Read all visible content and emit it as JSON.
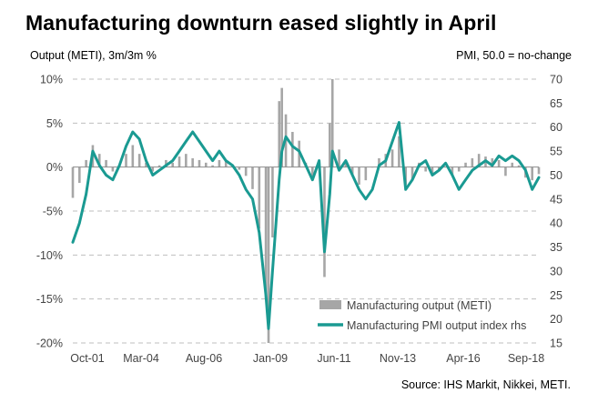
{
  "title": "Manufacturing downturn eased slightly in April",
  "left_axis_label": "Output  (METI), 3m/3m %",
  "right_axis_label": "PMI, 50.0 = no-change",
  "source": "Source: IHS Markit, Nikkei, METI.",
  "colors": {
    "bars": "#a6a6a6",
    "line": "#1a9a92",
    "grid": "#bfbfbf",
    "axis": "#444444"
  },
  "chart_data": {
    "type": "bar+line",
    "x_tick_labels": [
      "Oct-01",
      "Mar-04",
      "Aug-06",
      "Jan-09",
      "Jun-11",
      "Nov-13",
      "Apr-16",
      "Sep-18"
    ],
    "y_left": {
      "ticks": [
        "10%",
        "5%",
        "0%",
        "-5%",
        "-10%",
        "-15%",
        "-20%"
      ],
      "min": -20,
      "max": 10
    },
    "y_right": {
      "ticks": [
        "70",
        "65",
        "60",
        "55",
        "50",
        "45",
        "40",
        "35",
        "30",
        "25",
        "20",
        "15"
      ],
      "min": 15,
      "max": 70
    },
    "grid": "horizontal dashed",
    "legend": {
      "position": "bottom-right",
      "entries": [
        "Manufacturing output (METI)",
        "Manufacturing PMI output index rhs"
      ]
    },
    "series": [
      {
        "name": "Manufacturing output (METI)",
        "type": "bar",
        "axis": "left",
        "points": [
          [
            2001.75,
            -3.5
          ],
          [
            2002.0,
            -1.8
          ],
          [
            2002.25,
            0.8
          ],
          [
            2002.5,
            2.5
          ],
          [
            2002.75,
            1.5
          ],
          [
            2003.0,
            0.8
          ],
          [
            2003.25,
            -0.5
          ],
          [
            2003.5,
            0.2
          ],
          [
            2003.75,
            1.5
          ],
          [
            2004.0,
            2.5
          ],
          [
            2004.25,
            1.5
          ],
          [
            2004.5,
            0.5
          ],
          [
            2004.75,
            -0.5
          ],
          [
            2005.0,
            0.2
          ],
          [
            2005.25,
            0.8
          ],
          [
            2005.5,
            0.5
          ],
          [
            2005.75,
            1.2
          ],
          [
            2006.0,
            1.5
          ],
          [
            2006.25,
            1.0
          ],
          [
            2006.5,
            0.8
          ],
          [
            2006.75,
            0.5
          ],
          [
            2007.0,
            0.2
          ],
          [
            2007.25,
            0.8
          ],
          [
            2007.5,
            0.8
          ],
          [
            2007.75,
            0.2
          ],
          [
            2008.0,
            -0.3
          ],
          [
            2008.25,
            -1.0
          ],
          [
            2008.5,
            -2.5
          ],
          [
            2008.75,
            -7.0
          ],
          [
            2009.0,
            -15.0
          ],
          [
            2009.1,
            -20.0
          ],
          [
            2009.25,
            -8.0
          ],
          [
            2009.5,
            7.5
          ],
          [
            2009.6,
            9.0
          ],
          [
            2009.75,
            6.0
          ],
          [
            2010.0,
            4.0
          ],
          [
            2010.25,
            3.0
          ],
          [
            2010.5,
            0.5
          ],
          [
            2010.75,
            -1.0
          ],
          [
            2011.0,
            0.5
          ],
          [
            2011.2,
            -12.5
          ],
          [
            2011.4,
            5.0
          ],
          [
            2011.5,
            10.0
          ],
          [
            2011.75,
            2.0
          ],
          [
            2012.0,
            0.5
          ],
          [
            2012.25,
            -1.0
          ],
          [
            2012.5,
            -2.0
          ],
          [
            2012.75,
            -1.5
          ],
          [
            2013.0,
            0.0
          ],
          [
            2013.25,
            1.0
          ],
          [
            2013.5,
            1.5
          ],
          [
            2013.75,
            2.0
          ],
          [
            2014.0,
            3.5
          ],
          [
            2014.25,
            -2.0
          ],
          [
            2014.5,
            -1.5
          ],
          [
            2014.75,
            0.5
          ],
          [
            2015.0,
            -0.5
          ],
          [
            2015.25,
            -1.0
          ],
          [
            2015.5,
            -0.5
          ],
          [
            2015.75,
            0.0
          ],
          [
            2016.0,
            -1.0
          ],
          [
            2016.25,
            -0.5
          ],
          [
            2016.5,
            0.5
          ],
          [
            2016.75,
            1.0
          ],
          [
            2017.0,
            1.5
          ],
          [
            2017.25,
            1.2
          ],
          [
            2017.5,
            1.0
          ],
          [
            2017.75,
            0.8
          ],
          [
            2018.0,
            -1.0
          ],
          [
            2018.25,
            0.5
          ],
          [
            2018.5,
            0.2
          ],
          [
            2018.75,
            -1.2
          ],
          [
            2019.0,
            -1.5
          ],
          [
            2019.25,
            -0.8
          ]
        ]
      },
      {
        "name": "Manufacturing PMI output index rhs",
        "type": "line",
        "axis": "right",
        "points": [
          [
            2001.75,
            36.0
          ],
          [
            2002.0,
            40.0
          ],
          [
            2002.25,
            46.0
          ],
          [
            2002.5,
            55.0
          ],
          [
            2002.75,
            52.0
          ],
          [
            2003.0,
            50.0
          ],
          [
            2003.25,
            49.0
          ],
          [
            2003.5,
            52.0
          ],
          [
            2003.75,
            56.0
          ],
          [
            2004.0,
            59.0
          ],
          [
            2004.25,
            57.5
          ],
          [
            2004.5,
            53.0
          ],
          [
            2004.75,
            50.0
          ],
          [
            2005.0,
            51.0
          ],
          [
            2005.25,
            52.0
          ],
          [
            2005.5,
            53.0
          ],
          [
            2005.75,
            55.0
          ],
          [
            2006.0,
            57.0
          ],
          [
            2006.25,
            59.0
          ],
          [
            2006.5,
            57.0
          ],
          [
            2006.75,
            55.0
          ],
          [
            2007.0,
            53.0
          ],
          [
            2007.25,
            55.0
          ],
          [
            2007.5,
            53.0
          ],
          [
            2007.75,
            52.0
          ],
          [
            2008.0,
            50.0
          ],
          [
            2008.25,
            47.0
          ],
          [
            2008.5,
            45.0
          ],
          [
            2008.75,
            38.0
          ],
          [
            2009.0,
            25.0
          ],
          [
            2009.1,
            18.0
          ],
          [
            2009.25,
            30.0
          ],
          [
            2009.5,
            49.0
          ],
          [
            2009.6,
            55.0
          ],
          [
            2009.75,
            58.0
          ],
          [
            2010.0,
            56.0
          ],
          [
            2010.25,
            55.0
          ],
          [
            2010.5,
            52.0
          ],
          [
            2010.75,
            49.0
          ],
          [
            2011.0,
            53.0
          ],
          [
            2011.2,
            34.0
          ],
          [
            2011.4,
            46.0
          ],
          [
            2011.5,
            55.0
          ],
          [
            2011.75,
            51.0
          ],
          [
            2012.0,
            53.0
          ],
          [
            2012.25,
            50.0
          ],
          [
            2012.5,
            47.0
          ],
          [
            2012.75,
            45.0
          ],
          [
            2013.0,
            47.0
          ],
          [
            2013.25,
            52.0
          ],
          [
            2013.5,
            53.0
          ],
          [
            2013.75,
            57.0
          ],
          [
            2014.0,
            61.0
          ],
          [
            2014.25,
            47.0
          ],
          [
            2014.5,
            49.0
          ],
          [
            2014.75,
            52.0
          ],
          [
            2015.0,
            53.0
          ],
          [
            2015.25,
            50.0
          ],
          [
            2015.5,
            51.0
          ],
          [
            2015.75,
            52.5
          ],
          [
            2016.0,
            50.0
          ],
          [
            2016.25,
            47.0
          ],
          [
            2016.5,
            49.0
          ],
          [
            2016.75,
            51.0
          ],
          [
            2017.0,
            52.0
          ],
          [
            2017.25,
            53.0
          ],
          [
            2017.5,
            52.0
          ],
          [
            2017.75,
            54.0
          ],
          [
            2018.0,
            53.0
          ],
          [
            2018.25,
            54.0
          ],
          [
            2018.5,
            53.0
          ],
          [
            2018.75,
            51.0
          ],
          [
            2019.0,
            47.0
          ],
          [
            2019.25,
            49.5
          ]
        ]
      }
    ]
  }
}
